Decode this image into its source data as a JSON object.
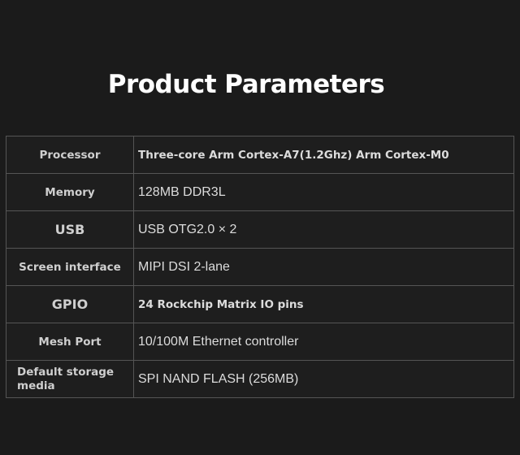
{
  "title": "Product Parameters",
  "rows": [
    {
      "label": "Processor",
      "value": "Three-core Arm Cortex-A7(1.2Ghz) Arm Cortex-M0"
    },
    {
      "label": "Memory",
      "value": "128MB DDR3L"
    },
    {
      "label": "USB",
      "value": "USB OTG2.0 × 2"
    },
    {
      "label": "Screen interface",
      "value": "MIPI DSI 2-lane"
    },
    {
      "label": "GPIO",
      "value": "24 Rockchip Matrix IO pins"
    },
    {
      "label": "Mesh Port",
      "value": "10/100M Ethernet controller"
    },
    {
      "label": "Default storage media",
      "value": "SPI NAND FLASH (256MB)"
    }
  ]
}
